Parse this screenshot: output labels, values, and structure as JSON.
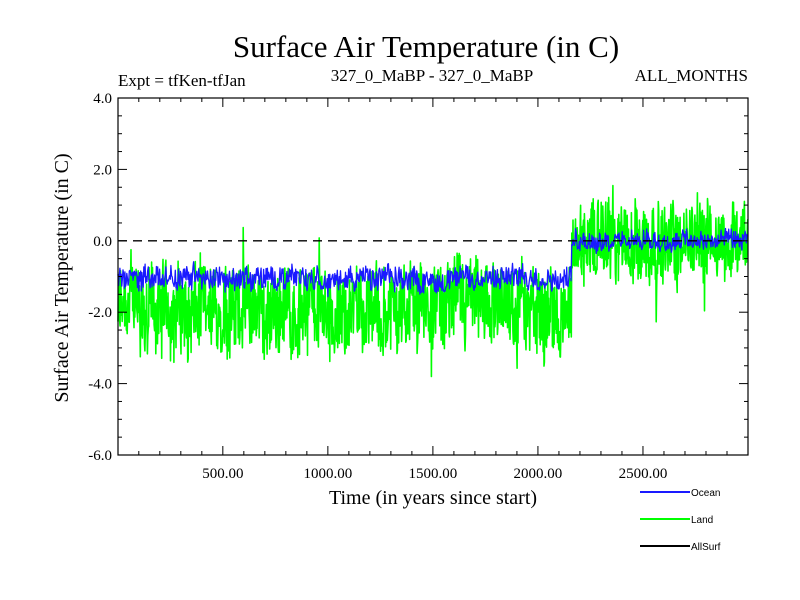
{
  "chart_data": {
    "type": "line",
    "title": "Surface Air Temperature (in C)",
    "subtitle_left": "Expt = tfKen-tfJan",
    "subtitle_center": "327_0_MaBP - 327_0_MaBP",
    "subtitle_right": "ALL_MONTHS",
    "xlabel": "Time (in years since start)",
    "ylabel": "Surface Air Temperature (in C)",
    "xlim": [
      1,
      3000
    ],
    "ylim": [
      -6.0,
      4.0
    ],
    "xticks": [
      500,
      1000,
      1500,
      2000,
      2500
    ],
    "xtick_labels": [
      "500.00",
      "1000.00",
      "1500.00",
      "2000.00",
      "2500.00"
    ],
    "yticks": [
      -6,
      -4,
      -2,
      0,
      2,
      4
    ],
    "ytick_labels": [
      "-6.0",
      "-4.0",
      "-2.0",
      "0.0",
      "2.0",
      "4.0"
    ],
    "reference_line": {
      "y": 0.0,
      "style": "dashed",
      "color": "#000000"
    },
    "legend": {
      "position": "bottom-right",
      "entries": [
        {
          "label": "Ocean",
          "color": "#1a1aff"
        },
        {
          "label": "Land",
          "color": "#00ff00"
        },
        {
          "label": "AllSurf",
          "color": "#000000"
        }
      ]
    },
    "series": [
      {
        "name": "Land",
        "color": "#00ff00",
        "note": "noisy series; segments give approximate mean and spread (±)",
        "segments": [
          {
            "x_start": 1,
            "x_end": 2160,
            "mean": -1.9,
            "spread": 1.3,
            "min": -4.5,
            "max": 0.6
          },
          {
            "x_start": 2160,
            "x_end": 3000,
            "mean": 0.0,
            "spread": 1.2,
            "min": -3.7,
            "max": 2.6
          }
        ]
      },
      {
        "name": "Ocean",
        "color": "#1a1aff",
        "note": "approximate mean and spread (±)",
        "segments": [
          {
            "x_start": 1,
            "x_end": 2160,
            "mean": -1.05,
            "spread": 0.35,
            "min": -2.1,
            "max": -0.2
          },
          {
            "x_start": 2160,
            "x_end": 3000,
            "mean": 0.0,
            "spread": 0.3,
            "min": -0.8,
            "max": 0.6
          }
        ]
      },
      {
        "name": "AllSurf",
        "color": "#000000",
        "segments": []
      }
    ]
  }
}
